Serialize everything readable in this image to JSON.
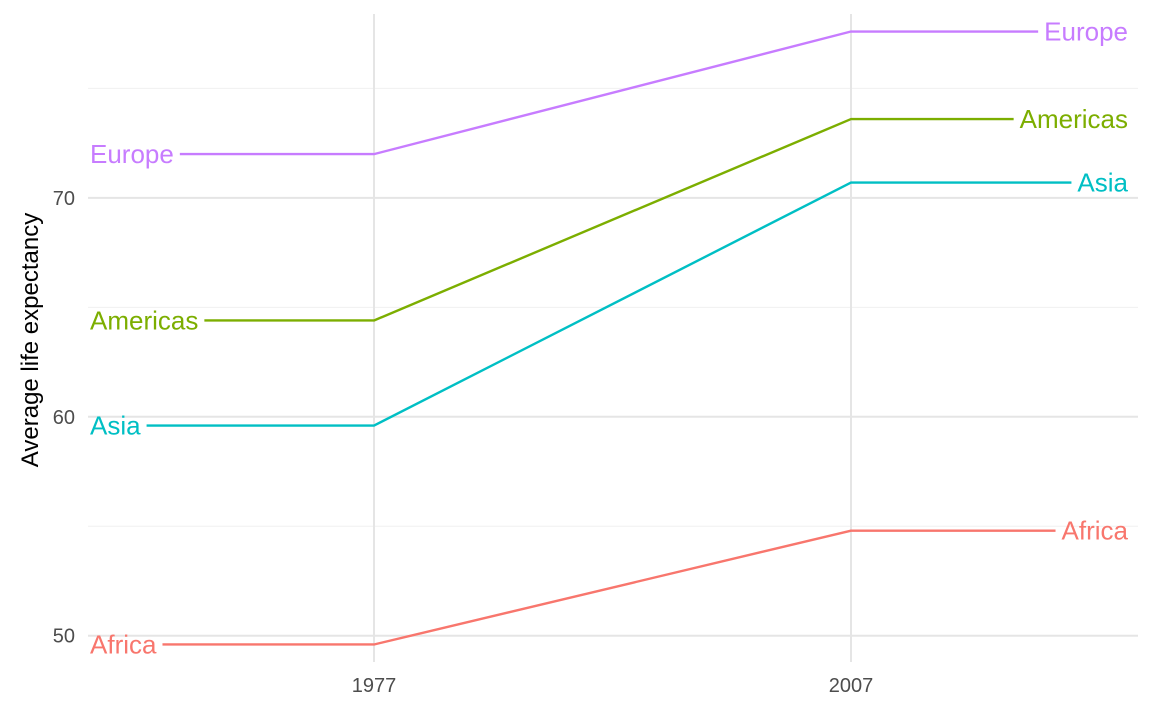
{
  "chart_data": {
    "type": "line",
    "title": "",
    "xlabel": "",
    "ylabel": "Average life expectancy",
    "x": [
      "1977",
      "2007"
    ],
    "x_ticks": [
      "1977",
      "2007"
    ],
    "y_ticks": [
      "50",
      "60",
      "70"
    ],
    "ylim": [
      48.8,
      78.4
    ],
    "grid": true,
    "legend": "none (direct labels at both ends of each line)",
    "series": [
      {
        "name": "Europe",
        "color": "#C77CFF",
        "values": [
          72.0,
          77.6
        ]
      },
      {
        "name": "Americas",
        "color": "#7CAE00",
        "values": [
          64.4,
          73.6
        ]
      },
      {
        "name": "Asia",
        "color": "#00BFC4",
        "values": [
          59.6,
          70.7
        ]
      },
      {
        "name": "Africa",
        "color": "#F8766D",
        "values": [
          49.6,
          54.8
        ]
      }
    ]
  }
}
